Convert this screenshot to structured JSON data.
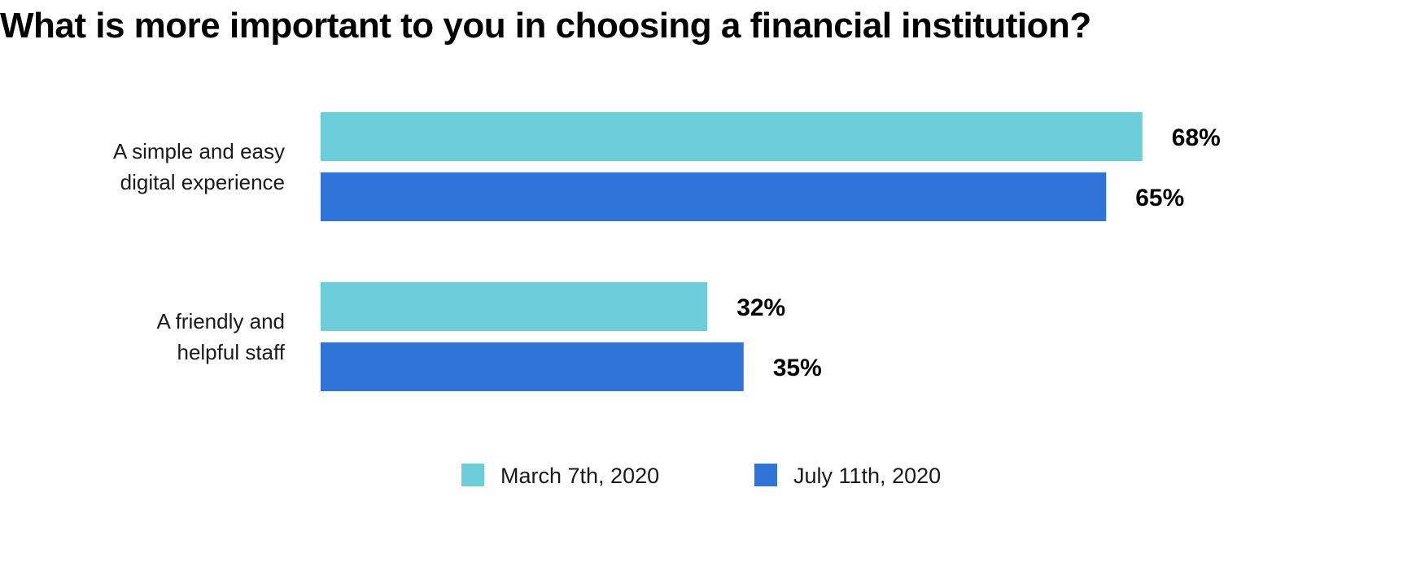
{
  "chart_data": {
    "type": "bar",
    "orientation": "horizontal",
    "title": "What is more important to you in choosing a financial institution?",
    "categories": [
      [
        "A simple and easy",
        "digital experience"
      ],
      [
        "A friendly and",
        "helpful staff"
      ]
    ],
    "series": [
      {
        "name": "March 7th, 2020",
        "color": "#6dcdd9",
        "values": [
          68,
          32
        ],
        "labels": [
          "68%",
          "32%"
        ]
      },
      {
        "name": "July 11th, 2020",
        "color": "#2f74d9",
        "values": [
          65,
          35
        ],
        "labels": [
          "65%",
          "35%"
        ]
      }
    ],
    "xlim": [
      0,
      100
    ],
    "grid": false,
    "legend": "bottom-center",
    "xlabel": "",
    "ylabel": ""
  }
}
